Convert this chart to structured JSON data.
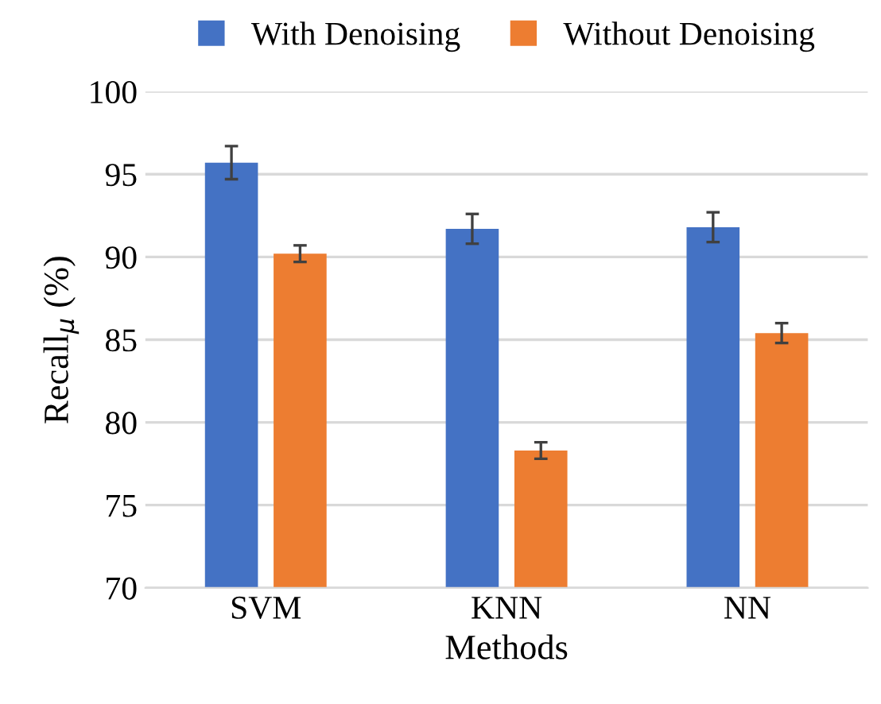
{
  "chart_data": {
    "type": "bar",
    "xlabel": "Methods",
    "ylabel": "Recall$_{μ}$ (%)",
    "categories": [
      "SVM",
      "KNN",
      "NN"
    ],
    "series": [
      {
        "name": "With Denoising",
        "color": "#4472c4",
        "values": [
          95.7,
          91.7,
          91.8
        ],
        "errors": [
          1.0,
          0.9,
          0.9
        ]
      },
      {
        "name": "Without Denoising",
        "color": "#ed7d31",
        "values": [
          90.2,
          78.3,
          85.4
        ],
        "errors": [
          0.5,
          0.5,
          0.6
        ]
      }
    ],
    "ylim": [
      70,
      100
    ],
    "yticks": [
      70,
      75,
      80,
      85,
      90,
      95,
      100
    ],
    "grid": "y",
    "legend": "top"
  }
}
